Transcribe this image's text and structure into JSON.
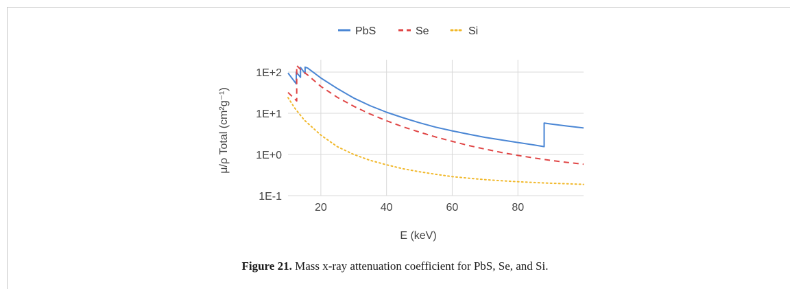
{
  "caption": {
    "label": "Figure 21.",
    "text": "Mass x-ray attenuation coefficient for PbS, Se, and Si."
  },
  "chart_data": {
    "type": "line",
    "title": "",
    "xlabel": "E (keV)",
    "ylabel": "μ/ρ Total (cm²g⁻¹)",
    "xlim": [
      10,
      100
    ],
    "ylim": [
      0.1,
      200
    ],
    "yscale": "log",
    "xticks": [
      20,
      40,
      60,
      80
    ],
    "xtick_labels": [
      "20",
      "40",
      "60",
      "80"
    ],
    "yticks": [
      0.1,
      1,
      10,
      100
    ],
    "ytick_labels": [
      "1E-1",
      "1E+0",
      "1E+1",
      "1E+2"
    ],
    "grid": true,
    "legend_position": "top-center",
    "series": [
      {
        "name": "PbS",
        "color": "#4a86d4",
        "style": "solid",
        "points": [
          [
            10,
            95
          ],
          [
            12.5,
            52
          ],
          [
            12.5,
            100
          ],
          [
            13.8,
            75
          ],
          [
            13.8,
            130
          ],
          [
            15.2,
            92
          ],
          [
            15.2,
            132
          ],
          [
            16,
            125
          ],
          [
            20,
            72
          ],
          [
            25,
            40
          ],
          [
            30,
            23.5
          ],
          [
            35,
            15.3
          ],
          [
            40,
            10.6
          ],
          [
            45,
            7.8
          ],
          [
            50,
            5.9
          ],
          [
            55,
            4.6
          ],
          [
            60,
            3.75
          ],
          [
            65,
            3.1
          ],
          [
            70,
            2.6
          ],
          [
            75,
            2.25
          ],
          [
            80,
            1.95
          ],
          [
            85,
            1.7
          ],
          [
            88,
            1.55
          ],
          [
            88,
            5.8
          ],
          [
            90,
            5.5
          ],
          [
            95,
            4.9
          ],
          [
            100,
            4.4
          ]
        ]
      },
      {
        "name": "Se",
        "color": "#e04545",
        "style": "dashed",
        "points": [
          [
            10,
            32
          ],
          [
            12.66,
            20
          ],
          [
            12.66,
            145
          ],
          [
            14,
            112
          ],
          [
            16,
            85
          ],
          [
            20,
            45
          ],
          [
            25,
            24.5
          ],
          [
            30,
            14.8
          ],
          [
            35,
            9.6
          ],
          [
            40,
            6.6
          ],
          [
            45,
            4.7
          ],
          [
            50,
            3.5
          ],
          [
            55,
            2.65
          ],
          [
            60,
            2.08
          ],
          [
            65,
            1.65
          ],
          [
            70,
            1.35
          ],
          [
            75,
            1.12
          ],
          [
            80,
            0.95
          ],
          [
            85,
            0.82
          ],
          [
            90,
            0.72
          ],
          [
            95,
            0.64
          ],
          [
            100,
            0.58
          ]
        ]
      },
      {
        "name": "Si",
        "color": "#f1b82a",
        "style": "dotted",
        "points": [
          [
            10,
            24
          ],
          [
            12,
            13.5
          ],
          [
            15,
            6.8
          ],
          [
            20,
            2.95
          ],
          [
            25,
            1.55
          ],
          [
            30,
            1.0
          ],
          [
            35,
            0.72
          ],
          [
            40,
            0.56
          ],
          [
            45,
            0.45
          ],
          [
            50,
            0.38
          ],
          [
            55,
            0.33
          ],
          [
            60,
            0.29
          ],
          [
            65,
            0.265
          ],
          [
            70,
            0.245
          ],
          [
            75,
            0.23
          ],
          [
            80,
            0.218
          ],
          [
            85,
            0.208
          ],
          [
            90,
            0.2
          ],
          [
            95,
            0.194
          ],
          [
            100,
            0.188
          ]
        ]
      }
    ]
  }
}
